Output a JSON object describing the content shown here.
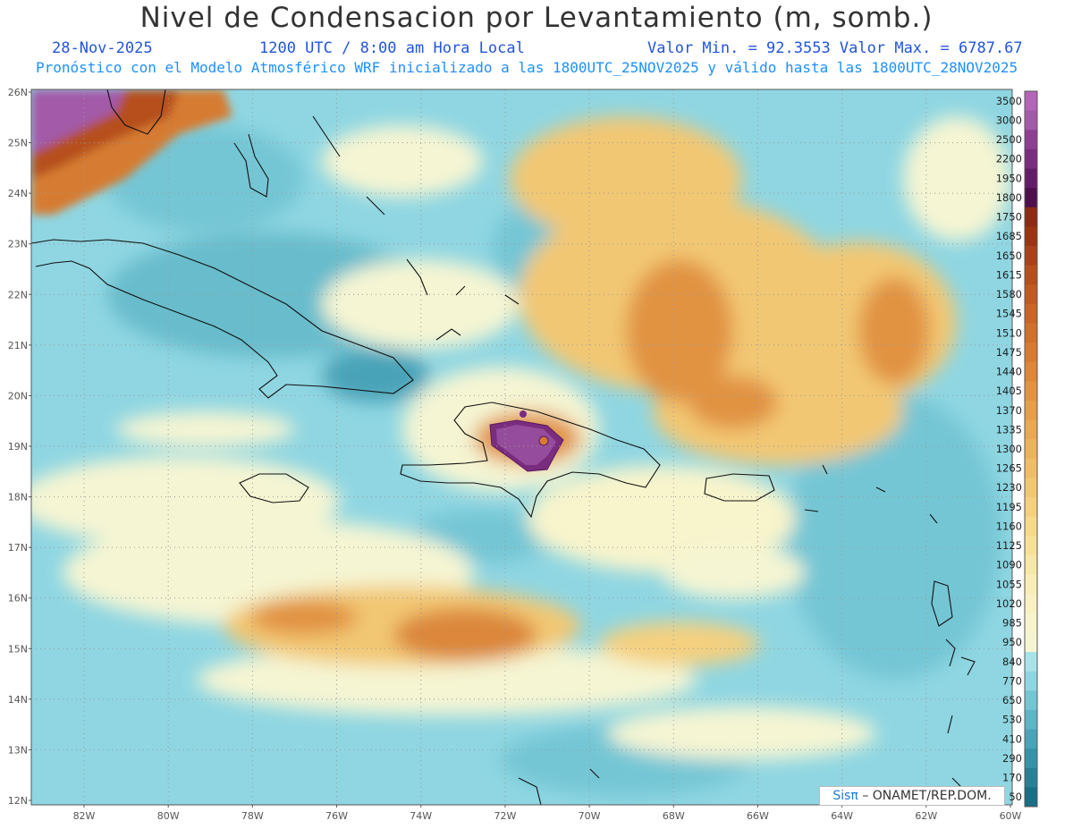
{
  "header": {
    "title": "Nivel de Condensacion por Levantamiento (m, somb.)",
    "date": "28-Nov-2025",
    "time": "1200 UTC / 8:00 am Hora Local",
    "minmax": "Valor Min. = 92.3553  Valor Max. = 6787.67",
    "forecast": "Pronóstico con el Modelo Atmosférico WRF inicializado a las 1800UTC_25NOV2025 y válido hasta las  1800UTC_28NOV2025"
  },
  "axes": {
    "lat_labels": [
      "26N",
      "25N",
      "24N",
      "23N",
      "22N",
      "21N",
      "20N",
      "19N",
      "18N",
      "17N",
      "16N",
      "15N",
      "14N",
      "13N",
      "12N"
    ],
    "lon_labels": [
      "82W",
      "80W",
      "78W",
      "76W",
      "74W",
      "72W",
      "70W",
      "68W",
      "66W",
      "64W",
      "62W",
      "60W"
    ]
  },
  "colorbar": {
    "levels": [
      "3500",
      "3000",
      "2500",
      "2200",
      "1950",
      "1800",
      "1750",
      "1685",
      "1650",
      "1615",
      "1580",
      "1545",
      "1510",
      "1475",
      "1440",
      "1405",
      "1370",
      "1335",
      "1300",
      "1265",
      "1230",
      "1195",
      "1160",
      "1125",
      "1090",
      "1055",
      "1020",
      "985",
      "950",
      "840",
      "770",
      "650",
      "530",
      "410",
      "290",
      "170",
      "50"
    ],
    "colors": [
      "#b565b8",
      "#a35aa8",
      "#8e3f93",
      "#7a2c7f",
      "#651c68",
      "#4f0f4f",
      "#8a2b12",
      "#9a3512",
      "#a9421a",
      "#b64f1e",
      "#c05a22",
      "#c86527",
      "#cf702d",
      "#d67b33",
      "#dc873a",
      "#e19342",
      "#e59e4a",
      "#e9a953",
      "#ecb35d",
      "#efbd68",
      "#f2c773",
      "#f4d07f",
      "#f6d98b",
      "#f7e199",
      "#f8e8a7",
      "#f9eeb5",
      "#f9f1c2",
      "#f8f4cc",
      "#f5f5d3",
      "#a9e3ea",
      "#8fd6e2",
      "#74c6d5",
      "#5eb5c7",
      "#4aa3b8",
      "#3892a8",
      "#288097",
      "#196f85"
    ]
  },
  "credit": {
    "logo": "Sisπ",
    "text": "– ONAMET/REP.DOM."
  }
}
